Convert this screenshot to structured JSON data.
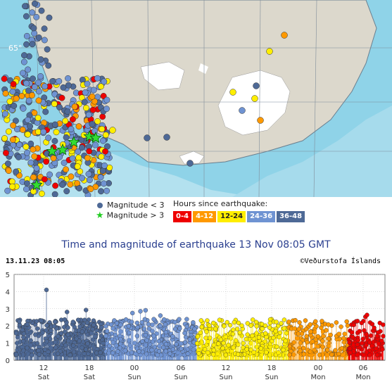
{
  "map": {
    "lat_label": "65°"
  },
  "legend": {
    "magnitude_small": "Magnitude < 3",
    "magnitude_large": "Magnitude > 3",
    "hours_title": "Hours since earthquake:",
    "hours": [
      {
        "label": "0-4",
        "color": "#ee0000",
        "text": "#ffffff"
      },
      {
        "label": "4-12",
        "color": "#ff9900",
        "text": "#ffffff"
      },
      {
        "label": "12-24",
        "color": "#ffee00",
        "text": "#222222"
      },
      {
        "label": "24-36",
        "color": "#6f93d2",
        "text": "#ffffff"
      },
      {
        "label": "36-48",
        "color": "#4e6996",
        "text": "#ffffff"
      }
    ]
  },
  "chart_header": {
    "title": "Time and magnitude of earthquake   13 Nov 08:05 GMT",
    "timestamp": "13.11.23 08:05",
    "copyright": "©Veðurstofa Íslands"
  },
  "chart_data": {
    "type": "scatter",
    "yticks": [
      "0",
      "1",
      "2",
      "3",
      "4",
      "5"
    ],
    "ylim": [
      0,
      5
    ],
    "xticks": [
      {
        "hour": "12",
        "day": "Sat"
      },
      {
        "hour": "18",
        "day": "Sat"
      },
      {
        "hour": "00",
        "day": "Sun"
      },
      {
        "hour": "06",
        "day": "Sun"
      },
      {
        "hour": "12",
        "day": "Sun"
      },
      {
        "hour": "18",
        "day": "Sun"
      },
      {
        "hour": "00",
        "day": "Mon"
      },
      {
        "hour": "06",
        "day": "Mon"
      }
    ],
    "segments": [
      {
        "label": "36-48",
        "color": "#4e6996"
      },
      {
        "label": "24-36",
        "color": "#6f93d2"
      },
      {
        "label": "12-24",
        "color": "#ffee00"
      },
      {
        "label": "4-12",
        "color": "#ff9900"
      },
      {
        "label": "0-4",
        "color": "#ee0000"
      }
    ],
    "max_magnitude": 4.1
  }
}
